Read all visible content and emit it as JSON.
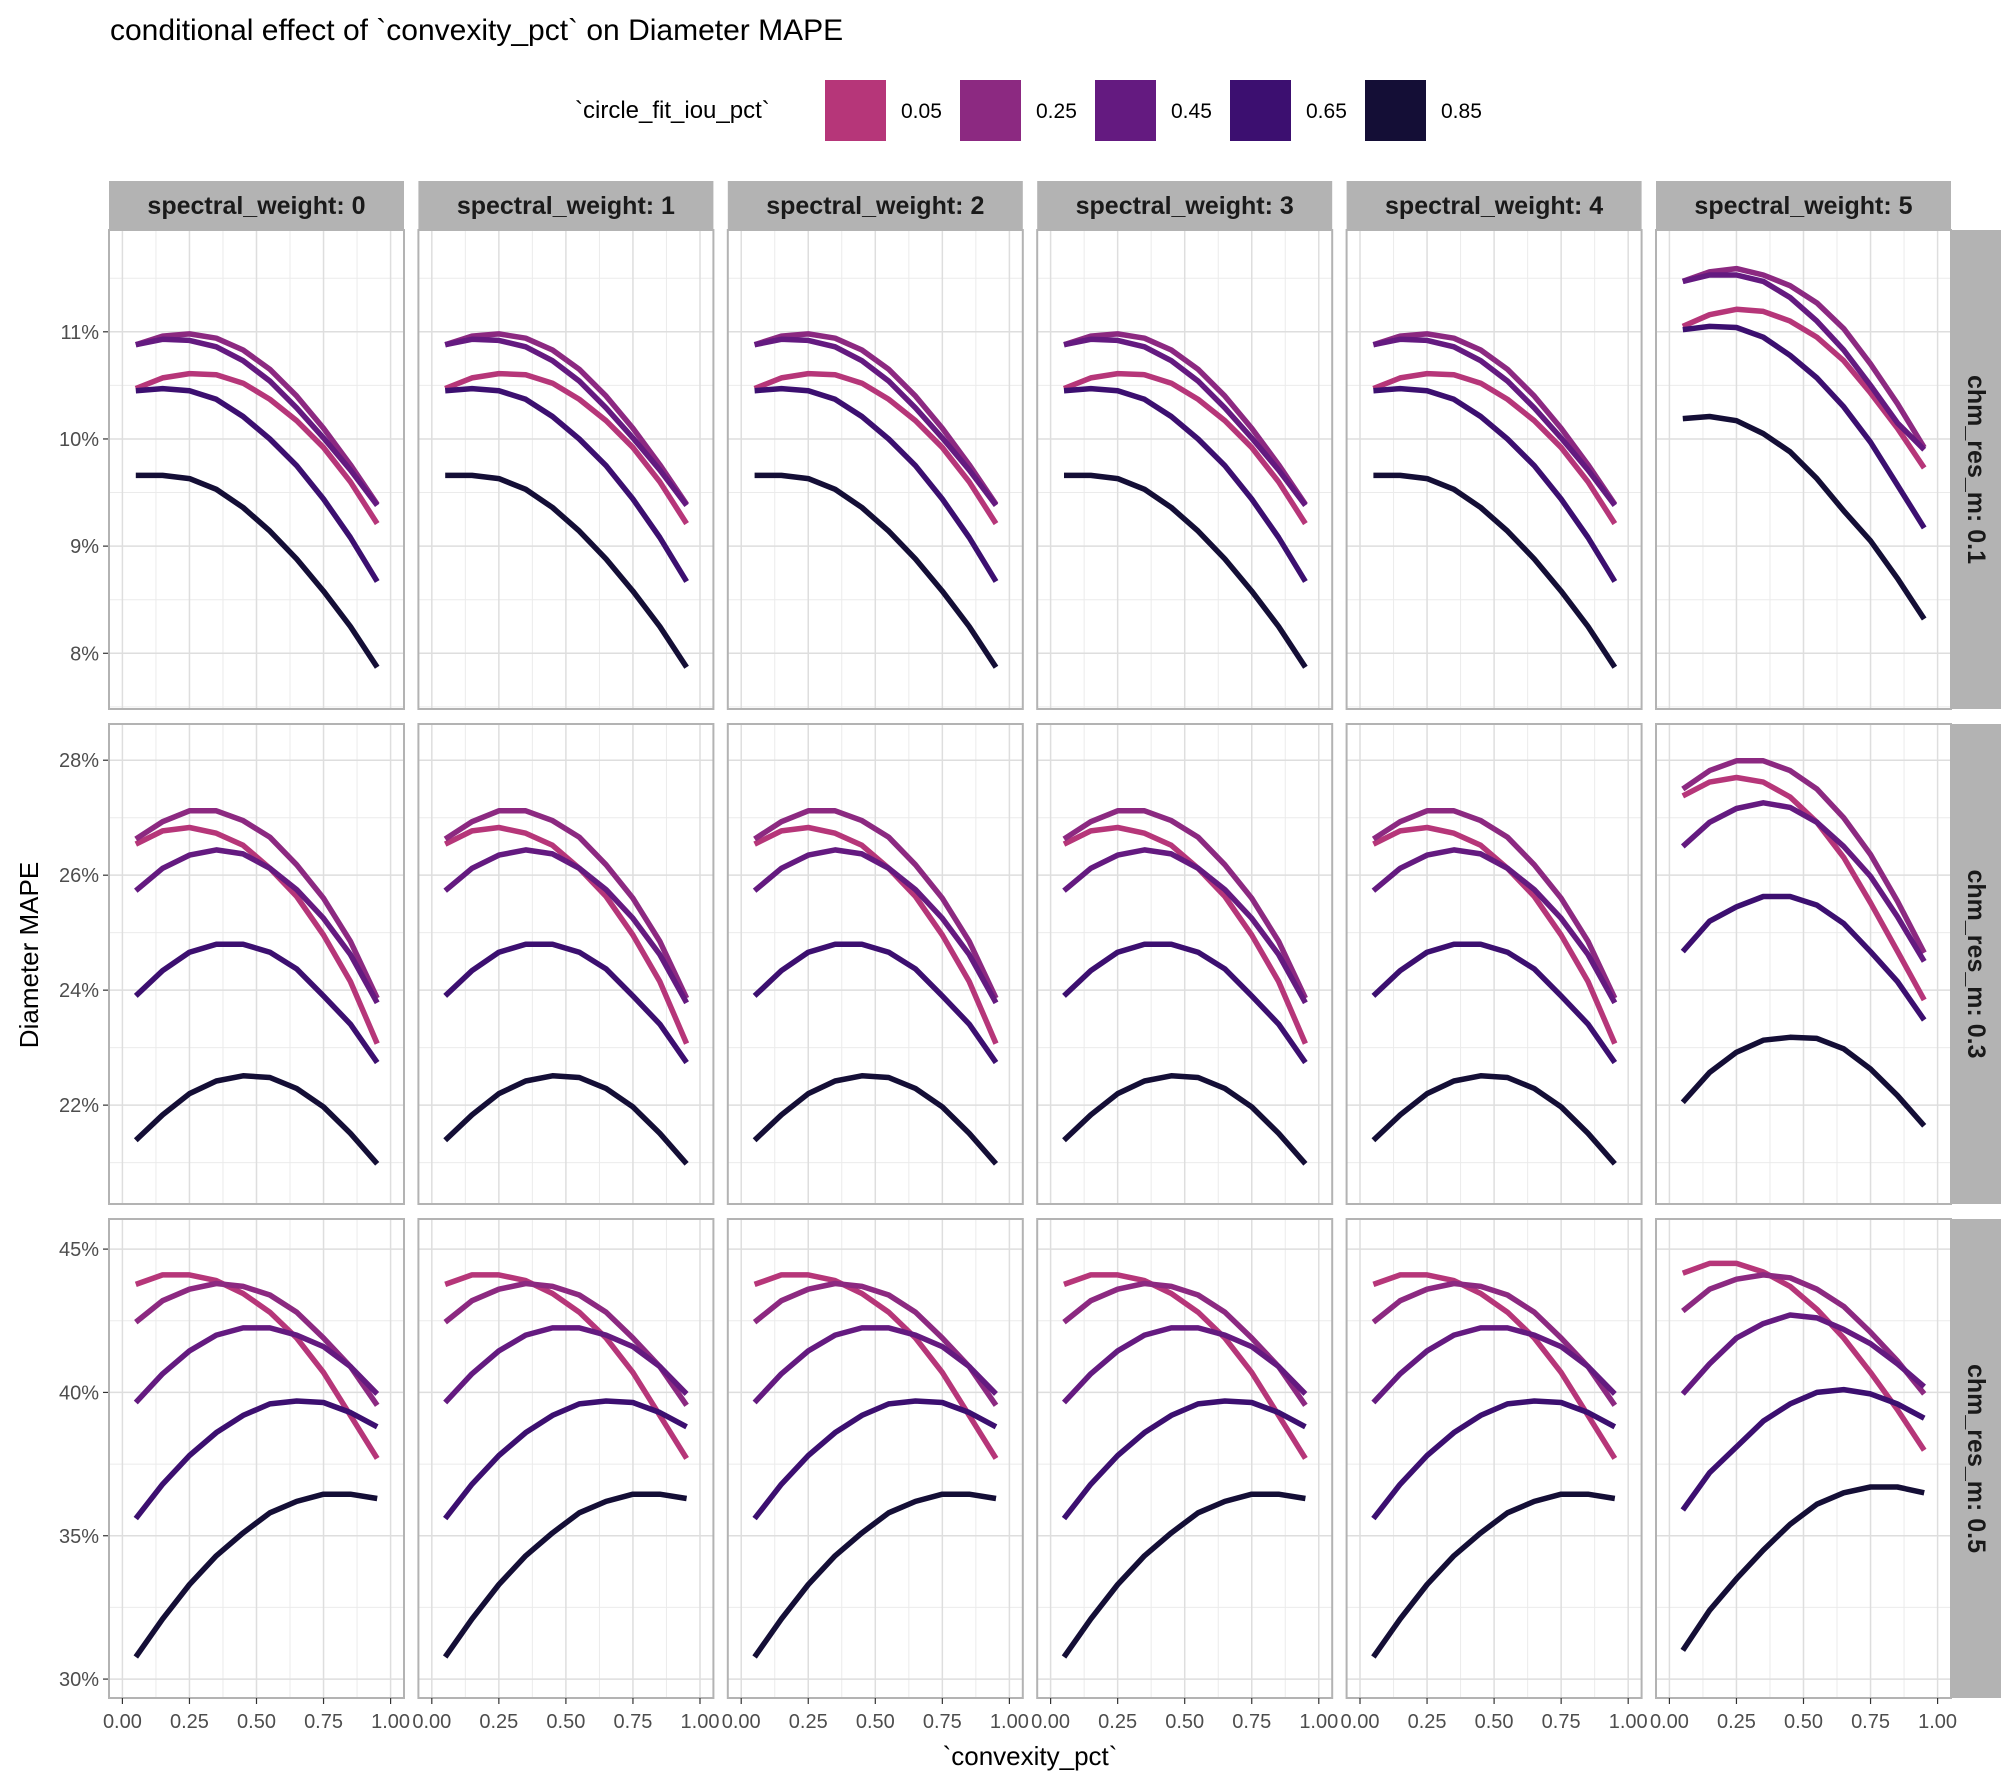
{
  "chart_data": {
    "type": "line",
    "title": "conditional effect of `convexity_pct` on Diameter MAPE",
    "xlabel": "`convexity_pct`",
    "ylabel": "Diameter MAPE",
    "x": [
      0.05,
      0.15,
      0.25,
      0.35,
      0.45,
      0.55,
      0.65,
      0.75,
      0.85,
      0.95
    ],
    "xlim": [
      -0.05,
      1.05
    ],
    "x_ticks": [
      "0.00",
      "0.25",
      "0.50",
      "0.75",
      "1.00"
    ],
    "x_tick_values": [
      0,
      0.25,
      0.5,
      0.75,
      1.0
    ],
    "grid": true,
    "legend": {
      "title": "`circle_fit_iou_pct`",
      "position": "top",
      "entries": [
        {
          "label": "0.05",
          "color": "#B63679"
        },
        {
          "label": "0.25",
          "color": "#8C2981"
        },
        {
          "label": "0.45",
          "color": "#641A80"
        },
        {
          "label": "0.65",
          "color": "#3C0F70"
        },
        {
          "label": "0.85",
          "color": "#140E36"
        }
      ]
    },
    "facet_cols": {
      "name": "spectral_weight",
      "labels": [
        "spectral_weight: 0",
        "spectral_weight: 1",
        "spectral_weight: 2",
        "spectral_weight: 3",
        "spectral_weight: 4",
        "spectral_weight: 5"
      ]
    },
    "facet_rows": [
      {
        "label": "chm_res_m: 0.1",
        "ylim": [
          7.48,
          11.95
        ],
        "y_ticks": [
          "8%",
          "9%",
          "10%",
          "11%"
        ],
        "y_tick_values": [
          8,
          9,
          10,
          11
        ],
        "y_minor": [
          7.5,
          8.5,
          9.5,
          10.5,
          11.5
        ],
        "panels": {
          "default": {
            "0.05": [
              10.47,
              10.57,
              10.61,
              10.6,
              10.52,
              10.37,
              10.17,
              9.92,
              9.6,
              9.21
            ],
            "0.25": [
              10.88,
              10.96,
              10.98,
              10.94,
              10.83,
              10.65,
              10.4,
              10.1,
              9.76,
              9.39
            ],
            "0.45": [
              10.88,
              10.93,
              10.92,
              10.86,
              10.73,
              10.54,
              10.29,
              10.01,
              9.71,
              9.38
            ],
            "0.65": [
              10.45,
              10.47,
              10.45,
              10.37,
              10.21,
              10.0,
              9.75,
              9.44,
              9.08,
              8.67
            ],
            "0.85": [
              9.66,
              9.66,
              9.63,
              9.53,
              9.36,
              9.14,
              8.88,
              8.58,
              8.25,
              7.87
            ]
          },
          "spectral_weight_5": {
            "0.05": [
              11.05,
              11.16,
              11.21,
              11.19,
              11.1,
              10.95,
              10.73,
              10.43,
              10.1,
              9.73
            ],
            "0.25": [
              11.47,
              11.56,
              11.59,
              11.53,
              11.43,
              11.27,
              11.03,
              10.7,
              10.33,
              9.92
            ],
            "0.45": [
              11.47,
              11.53,
              11.53,
              11.47,
              11.32,
              11.1,
              10.83,
              10.5,
              10.15,
              9.9
            ],
            "0.65": [
              11.02,
              11.05,
              11.04,
              10.95,
              10.78,
              10.57,
              10.3,
              9.97,
              9.57,
              9.17
            ],
            "0.85": [
              10.19,
              10.21,
              10.17,
              10.05,
              9.88,
              9.63,
              9.33,
              9.05,
              8.7,
              8.32
            ]
          }
        }
      },
      {
        "label": "chm_res_m: 0.3",
        "ylim": [
          20.28,
          28.63
        ],
        "y_ticks": [
          "22%",
          "24%",
          "26%",
          "28%"
        ],
        "y_tick_values": [
          22,
          24,
          26,
          28
        ],
        "y_minor": [
          21,
          23,
          25,
          27
        ],
        "panels": {
          "default": {
            "0.05": [
              26.54,
              26.77,
              26.83,
              26.73,
              26.52,
              26.12,
              25.63,
              24.96,
              24.15,
              23.07
            ],
            "0.25": [
              26.63,
              26.93,
              27.12,
              27.12,
              26.95,
              26.66,
              26.18,
              25.6,
              24.85,
              23.86
            ],
            "0.45": [
              25.73,
              26.12,
              26.35,
              26.44,
              26.37,
              26.12,
              25.75,
              25.25,
              24.62,
              23.78
            ],
            "0.65": [
              23.9,
              24.34,
              24.66,
              24.8,
              24.8,
              24.66,
              24.37,
              23.9,
              23.41,
              22.74
            ],
            "0.85": [
              21.39,
              21.83,
              22.2,
              22.42,
              22.51,
              22.48,
              22.29,
              21.97,
              21.51,
              20.98
            ]
          },
          "spectral_weight_5": {
            "0.05": [
              27.38,
              27.62,
              27.7,
              27.62,
              27.36,
              26.92,
              26.31,
              25.52,
              24.68,
              23.83
            ],
            "0.25": [
              27.5,
              27.82,
              27.99,
              27.99,
              27.82,
              27.5,
              27.0,
              26.36,
              25.55,
              24.65
            ],
            "0.45": [
              26.5,
              26.92,
              27.16,
              27.26,
              27.18,
              26.92,
              26.5,
              25.98,
              25.28,
              24.5
            ],
            "0.65": [
              24.67,
              25.2,
              25.45,
              25.63,
              25.63,
              25.48,
              25.16,
              24.67,
              24.15,
              23.48
            ],
            "0.85": [
              22.05,
              22.57,
              22.92,
              23.13,
              23.18,
              23.16,
              22.98,
              22.63,
              22.17,
              21.64
            ]
          }
        }
      },
      {
        "label": "chm_res_m: 0.5",
        "ylim": [
          29.34,
          46.05
        ],
        "y_ticks": [
          "30%",
          "35%",
          "40%",
          "45%"
        ],
        "y_tick_values": [
          30,
          35,
          40,
          45
        ],
        "y_minor": [
          32.5,
          37.5,
          42.5
        ],
        "panels": {
          "default": {
            "0.05": [
              43.77,
              44.1,
              44.1,
              43.9,
              43.45,
              42.8,
              41.9,
              40.7,
              39.2,
              37.7
            ],
            "0.25": [
              42.45,
              43.2,
              43.6,
              43.8,
              43.7,
              43.4,
              42.8,
              41.9,
              40.9,
              39.55
            ],
            "0.45": [
              39.65,
              40.65,
              41.45,
              42.0,
              42.25,
              42.25,
              42.0,
              41.6,
              40.9,
              39.95
            ],
            "0.65": [
              35.6,
              36.8,
              37.8,
              38.6,
              39.2,
              39.6,
              39.7,
              39.65,
              39.3,
              38.8
            ],
            "0.85": [
              30.77,
              32.1,
              33.3,
              34.3,
              35.1,
              35.8,
              36.2,
              36.45,
              36.45,
              36.3
            ]
          },
          "spectral_weight_5": {
            "0.05": [
              44.16,
              44.5,
              44.5,
              44.2,
              43.7,
              42.9,
              41.9,
              40.7,
              39.4,
              37.98
            ],
            "0.25": [
              42.84,
              43.6,
              43.95,
              44.1,
              44.0,
              43.6,
              43.0,
              42.1,
              41.1,
              39.95
            ],
            "0.45": [
              39.95,
              41.0,
              41.9,
              42.4,
              42.7,
              42.6,
              42.2,
              41.7,
              41.0,
              40.2
            ],
            "0.65": [
              35.9,
              37.2,
              38.1,
              39.0,
              39.6,
              40.0,
              40.1,
              39.95,
              39.6,
              39.1
            ],
            "0.85": [
              31.0,
              32.4,
              33.5,
              34.5,
              35.4,
              36.1,
              36.5,
              36.7,
              36.7,
              36.5
            ]
          }
        }
      }
    ]
  }
}
